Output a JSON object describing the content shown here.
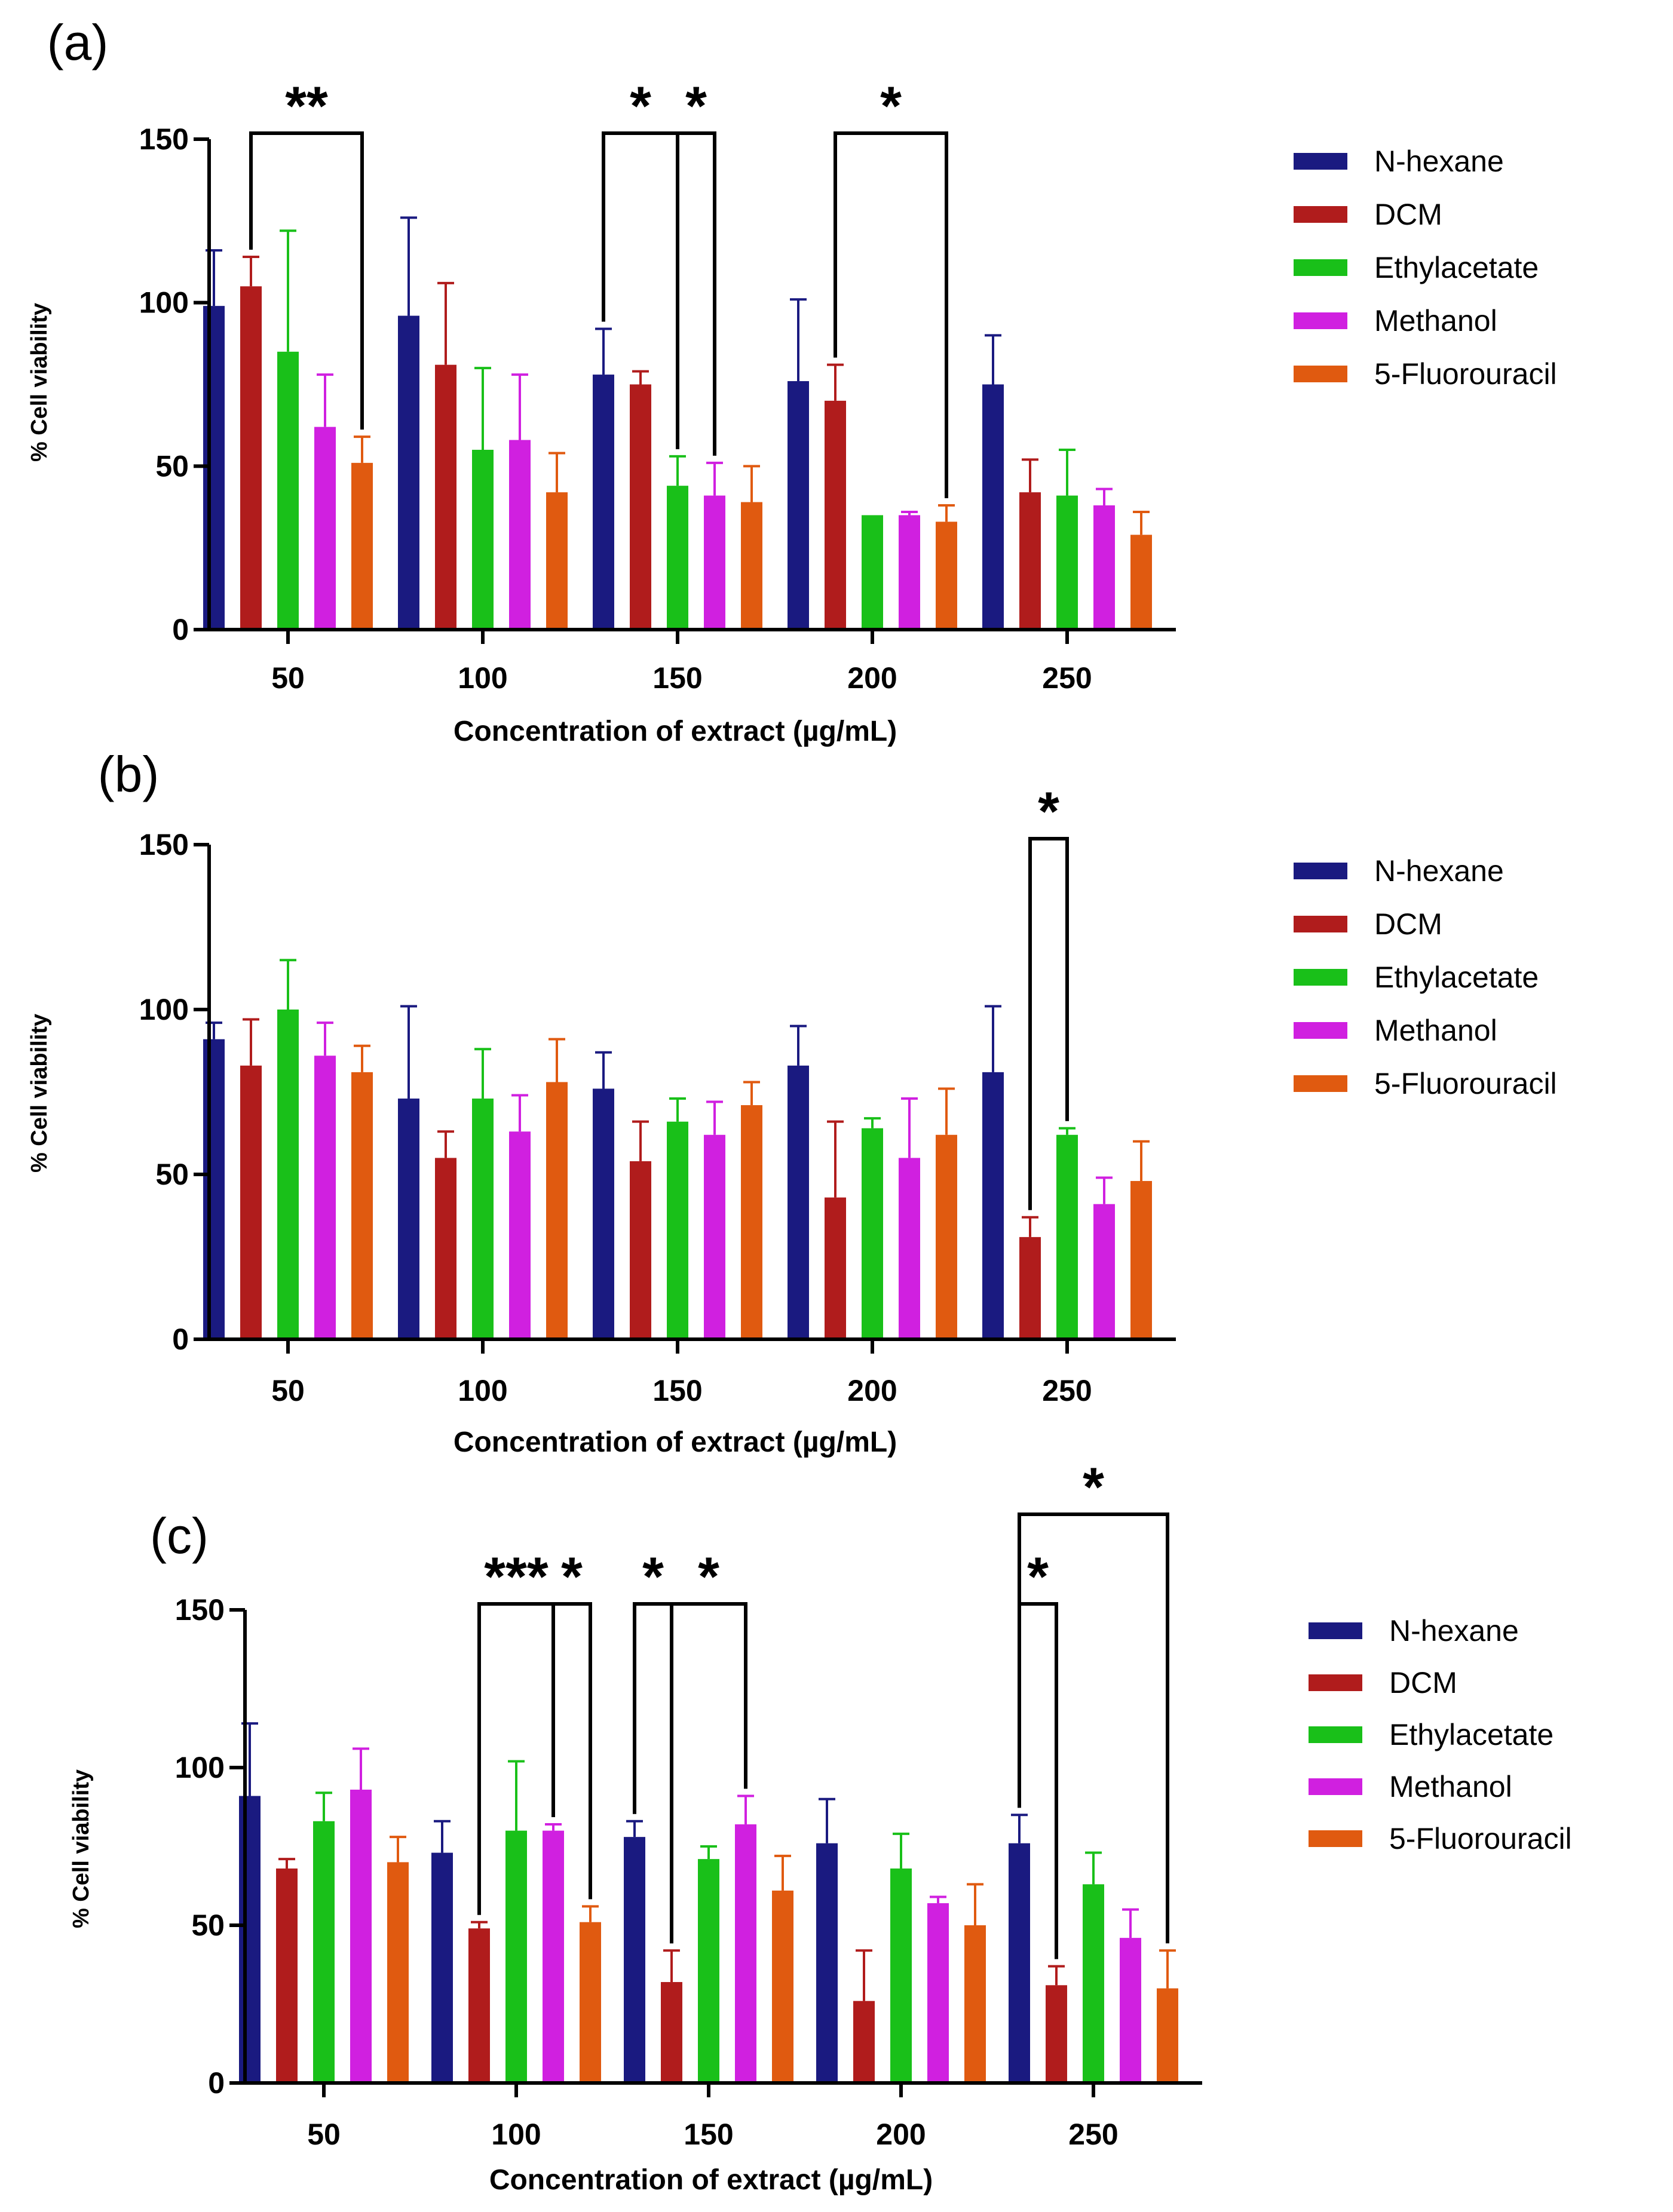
{
  "colors": {
    "N-hexane": "#1a1a80",
    "DCM": "#b01c1c",
    "Ethylacetate": "#19c019",
    "Methanol": "#d020e0",
    "5-Fluorouracil": "#e05a10"
  },
  "chart_data": [
    {
      "id": "a",
      "type": "bar",
      "panel_label": "(a)",
      "xlabel": "Concentration of extract (µg/mL)",
      "ylabel": "% Cell viability",
      "ylim": [
        0,
        150
      ],
      "yticks": [
        "0",
        "50",
        "100",
        "150"
      ],
      "categories": [
        "50",
        "100",
        "150",
        "200",
        "250"
      ],
      "legend": [
        "N-hexane",
        "DCM",
        "Ethylacetate",
        "Methanol",
        "5-Fluorouracil"
      ],
      "series": [
        {
          "name": "N-hexane",
          "values": [
            99,
            96,
            78,
            76,
            75
          ],
          "errors": [
            17,
            30,
            14,
            25,
            15
          ]
        },
        {
          "name": "DCM",
          "values": [
            105,
            81,
            75,
            70,
            42
          ],
          "errors": [
            9,
            25,
            4,
            11,
            10
          ]
        },
        {
          "name": "Ethylacetate",
          "values": [
            85,
            55,
            44,
            35,
            41
          ],
          "errors": [
            37,
            25,
            9,
            0,
            14
          ]
        },
        {
          "name": "Methanol",
          "values": [
            62,
            58,
            41,
            35,
            38
          ],
          "errors": [
            16,
            20,
            10,
            1,
            5
          ]
        },
        {
          "name": "5-Fluorouracil",
          "values": [
            51,
            42,
            39,
            33,
            29
          ],
          "errors": [
            8,
            12,
            11,
            5,
            7
          ]
        }
      ],
      "significance": [
        {
          "label": "**",
          "from": [
            0,
            1
          ],
          "to": [
            0,
            4
          ]
        },
        {
          "label": "*",
          "from": [
            2,
            0
          ],
          "to": [
            2,
            2
          ]
        },
        {
          "label": "*",
          "from": [
            2,
            2
          ],
          "to": [
            2,
            3
          ]
        },
        {
          "label": "*",
          "from": [
            3,
            1
          ],
          "to": [
            3,
            4
          ]
        }
      ]
    },
    {
      "id": "b",
      "type": "bar",
      "panel_label": "(b)",
      "xlabel": "Concentration of extract (µg/mL)",
      "ylabel": "% Cell viability",
      "ylim": [
        0,
        150
      ],
      "yticks": [
        "0",
        "50",
        "100",
        "150"
      ],
      "categories": [
        "50",
        "100",
        "150",
        "200",
        "250"
      ],
      "legend": [
        "N-hexane",
        "DCM",
        "Ethylacetate",
        "Methanol",
        "5-Fluorouracil"
      ],
      "series": [
        {
          "name": "N-hexane",
          "values": [
            91,
            73,
            76,
            83,
            81
          ],
          "errors": [
            5,
            28,
            11,
            12,
            20
          ]
        },
        {
          "name": "DCM",
          "values": [
            83,
            55,
            54,
            43,
            31
          ],
          "errors": [
            14,
            8,
            12,
            23,
            6
          ]
        },
        {
          "name": "Ethylacetate",
          "values": [
            100,
            73,
            66,
            64,
            62
          ],
          "errors": [
            15,
            15,
            7,
            3,
            2
          ]
        },
        {
          "name": "Methanol",
          "values": [
            86,
            63,
            62,
            55,
            41
          ],
          "errors": [
            10,
            11,
            10,
            18,
            8
          ]
        },
        {
          "name": "5-Fluorouracil",
          "values": [
            81,
            78,
            71,
            62,
            48
          ],
          "errors": [
            8,
            13,
            7,
            14,
            12
          ]
        }
      ],
      "significance": [
        {
          "label": "*",
          "from": [
            4,
            1
          ],
          "to": [
            4,
            2
          ]
        }
      ]
    },
    {
      "id": "c",
      "type": "bar",
      "panel_label": "(c)",
      "xlabel": "Concentration of extract (µg/mL)",
      "ylabel": "% Cell viability",
      "ylim": [
        0,
        150
      ],
      "yticks": [
        "0",
        "50",
        "100",
        "150"
      ],
      "categories": [
        "50",
        "100",
        "150",
        "200",
        "250"
      ],
      "legend": [
        "N-hexane",
        "DCM",
        "Ethylacetate",
        "Methanol",
        "5-Fluorouracil"
      ],
      "series": [
        {
          "name": "N-hexane",
          "values": [
            91,
            73,
            78,
            76,
            76
          ],
          "errors": [
            23,
            10,
            5,
            14,
            9
          ]
        },
        {
          "name": "DCM",
          "values": [
            68,
            49,
            32,
            26,
            31
          ],
          "errors": [
            3,
            2,
            10,
            16,
            6
          ]
        },
        {
          "name": "Ethylacetate",
          "values": [
            83,
            80,
            71,
            68,
            63
          ],
          "errors": [
            9,
            22,
            4,
            11,
            10
          ]
        },
        {
          "name": "Methanol",
          "values": [
            93,
            80,
            82,
            57,
            46
          ],
          "errors": [
            13,
            2,
            9,
            2,
            9
          ]
        },
        {
          "name": "5-Fluorouracil",
          "values": [
            70,
            51,
            61,
            50,
            30
          ],
          "errors": [
            8,
            5,
            11,
            13,
            12
          ]
        }
      ],
      "significance": [
        {
          "label": "***",
          "from": [
            1,
            1
          ],
          "to": [
            1,
            3
          ]
        },
        {
          "label": "*",
          "from": [
            1,
            3
          ],
          "to": [
            1,
            4
          ]
        },
        {
          "label": "*",
          "from": [
            2,
            0
          ],
          "to": [
            2,
            1
          ]
        },
        {
          "label": "*",
          "from": [
            2,
            1
          ],
          "to": [
            2,
            3
          ]
        },
        {
          "label": "*",
          "from": [
            4,
            0
          ],
          "to": [
            4,
            1
          ]
        },
        {
          "label": "*",
          "from": [
            4,
            0
          ],
          "to": [
            4,
            4
          ]
        }
      ]
    }
  ]
}
